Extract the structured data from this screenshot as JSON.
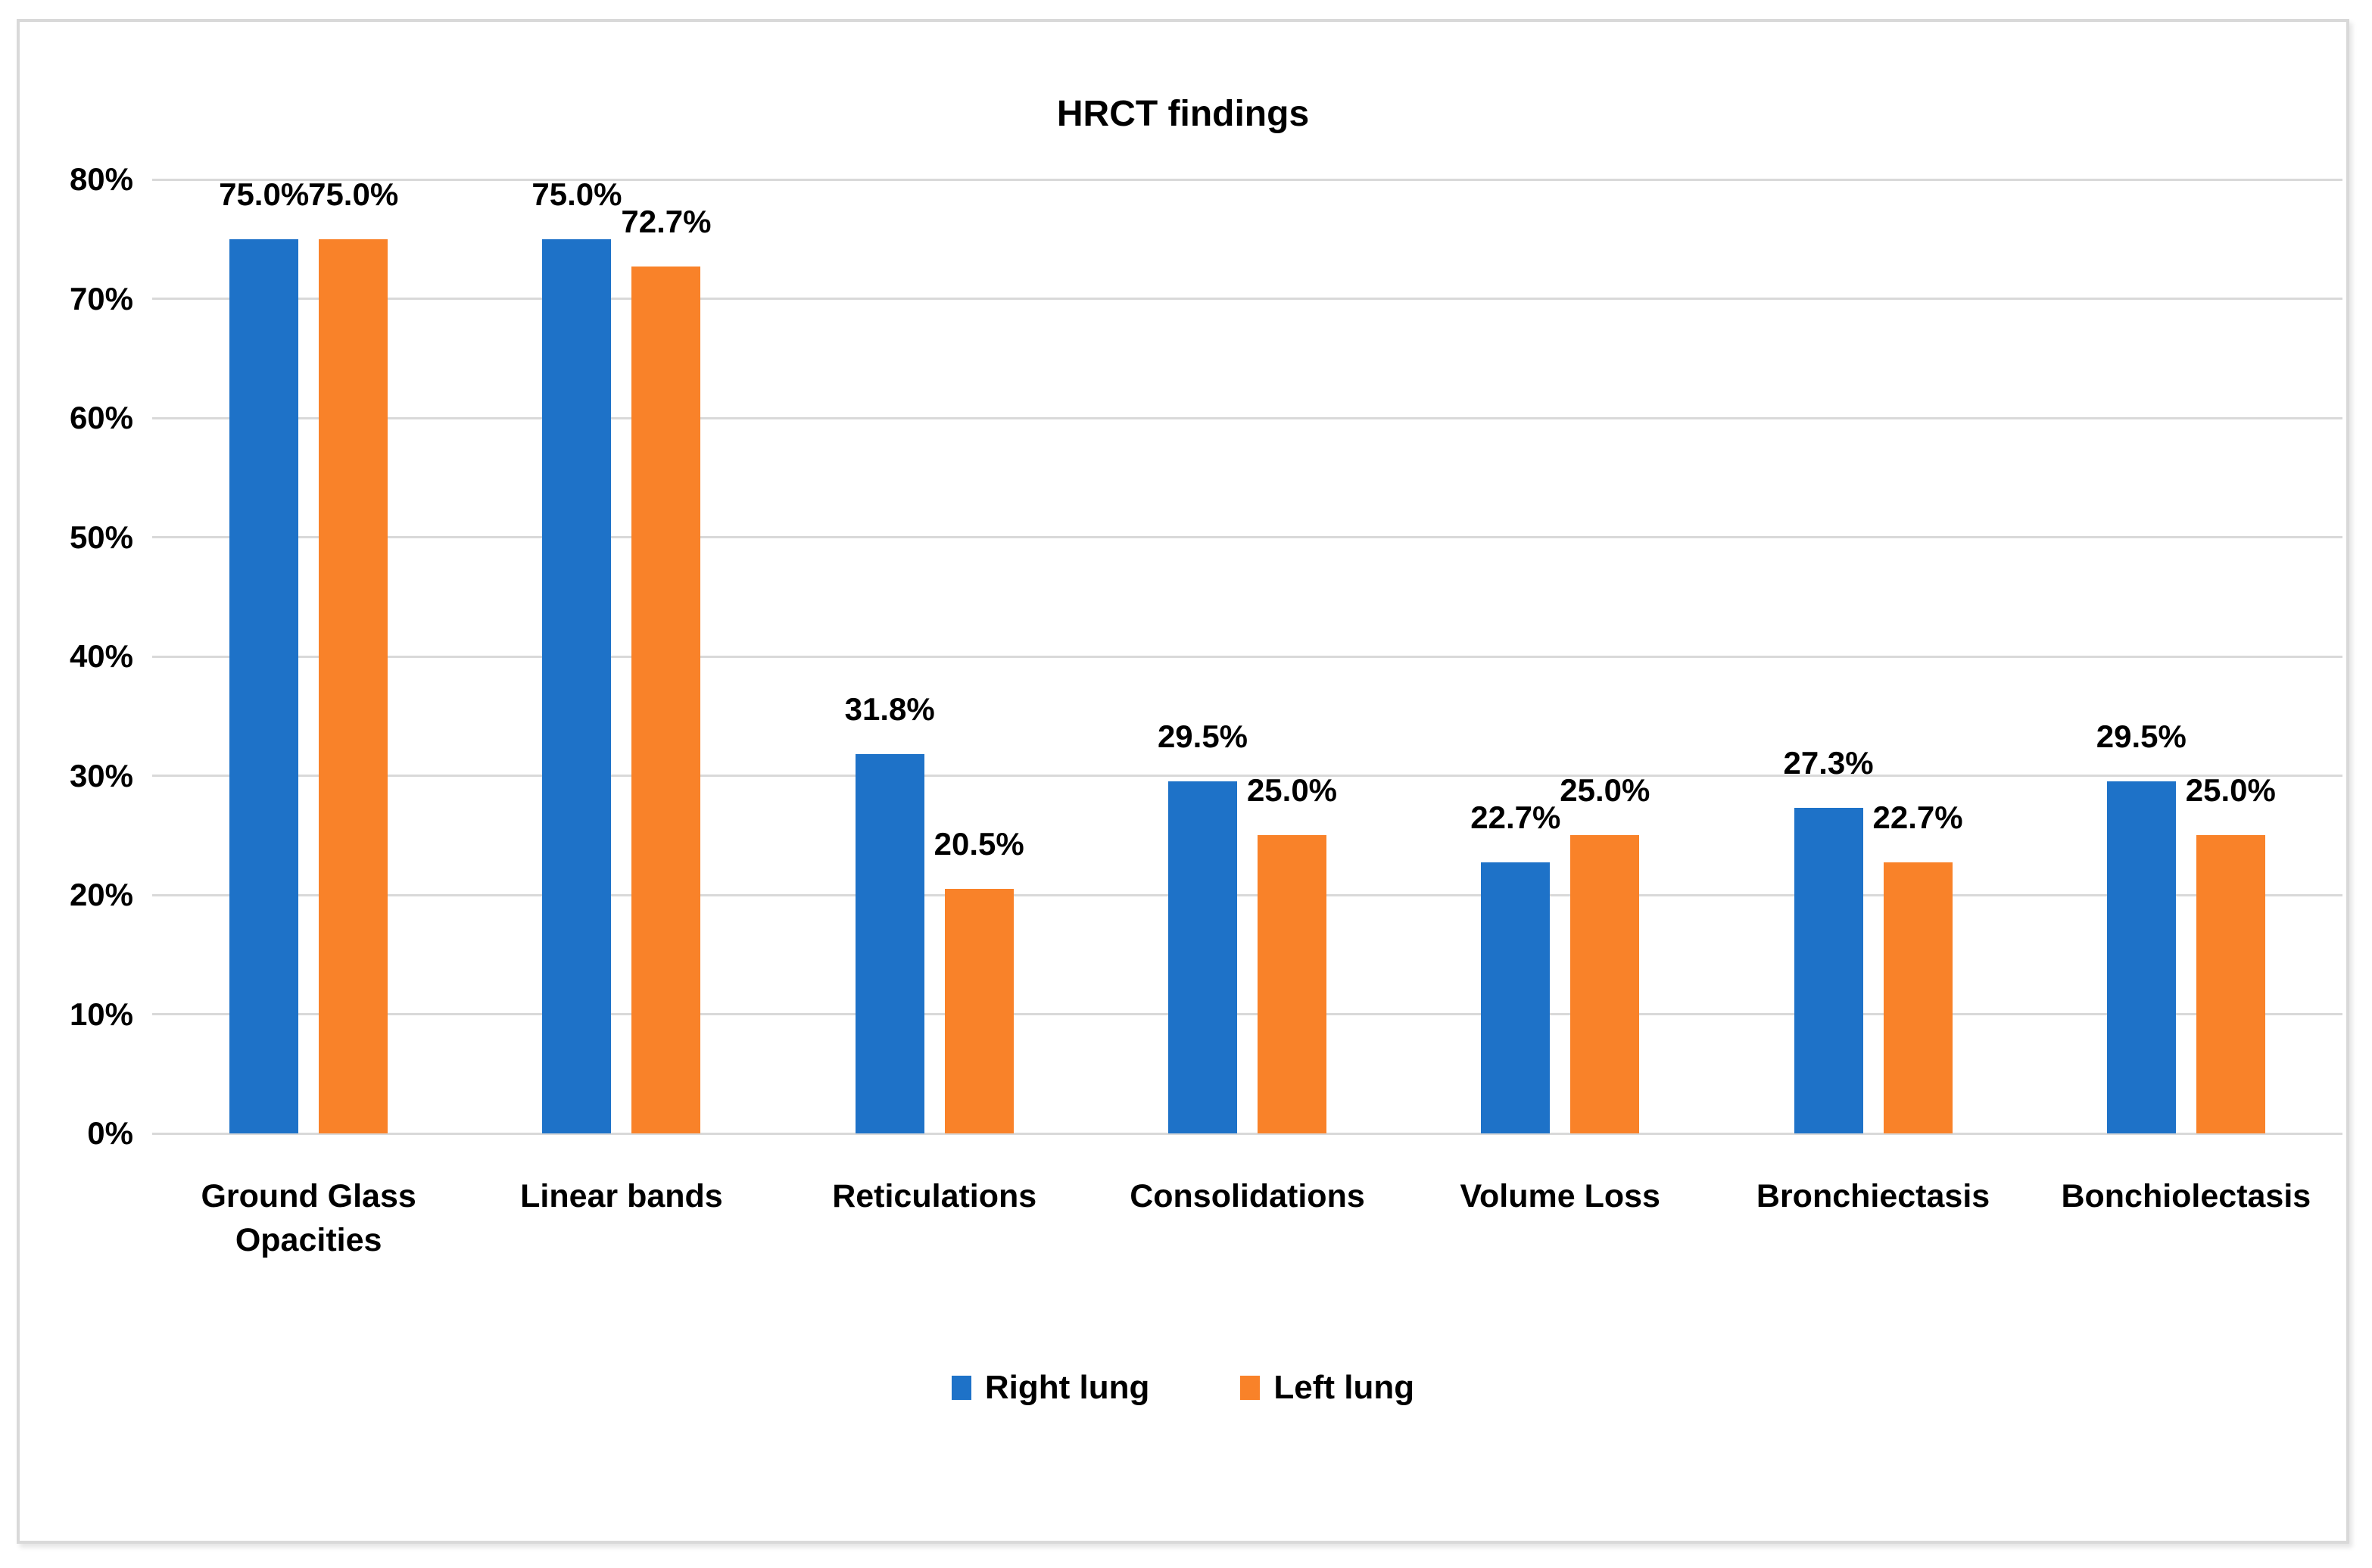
{
  "figure": {
    "background": "#FFFFFF",
    "frame_border_color": "#D9D9D9"
  },
  "chart_data": {
    "type": "bar",
    "title": "HRCT findings",
    "categories": [
      "Ground Glass Opacities",
      "Linear bands",
      "Reticulations",
      "Consolidations",
      "Volume Loss",
      "Bronchiectasis",
      "Bonchiolectasis"
    ],
    "series": [
      {
        "name": "Right lung",
        "color": "#1E72C8",
        "values": [
          75.0,
          75.0,
          31.8,
          29.5,
          22.7,
          27.3,
          29.5
        ],
        "labels": [
          "75.0%",
          "75.0%",
          "31.8%",
          "29.5%",
          "22.7%",
          "27.3%",
          "29.5%"
        ]
      },
      {
        "name": "Left lung",
        "color": "#F98229",
        "values": [
          75.0,
          72.7,
          20.5,
          25.0,
          25.0,
          22.7,
          25.0
        ],
        "labels": [
          "75.0%",
          "72.7%",
          "20.5%",
          "25.0%",
          "25.0%",
          "22.7%",
          "25.0%"
        ]
      }
    ],
    "xlabel": "",
    "ylabel": "",
    "ylim": [
      0,
      80
    ],
    "ytick_step": 10,
    "ytick_labels": [
      "0%",
      "10%",
      "20%",
      "30%",
      "40%",
      "50%",
      "60%",
      "70%",
      "80%"
    ],
    "grid": true,
    "gridline_color": "#D9D9D9",
    "legend_position": "bottom"
  }
}
